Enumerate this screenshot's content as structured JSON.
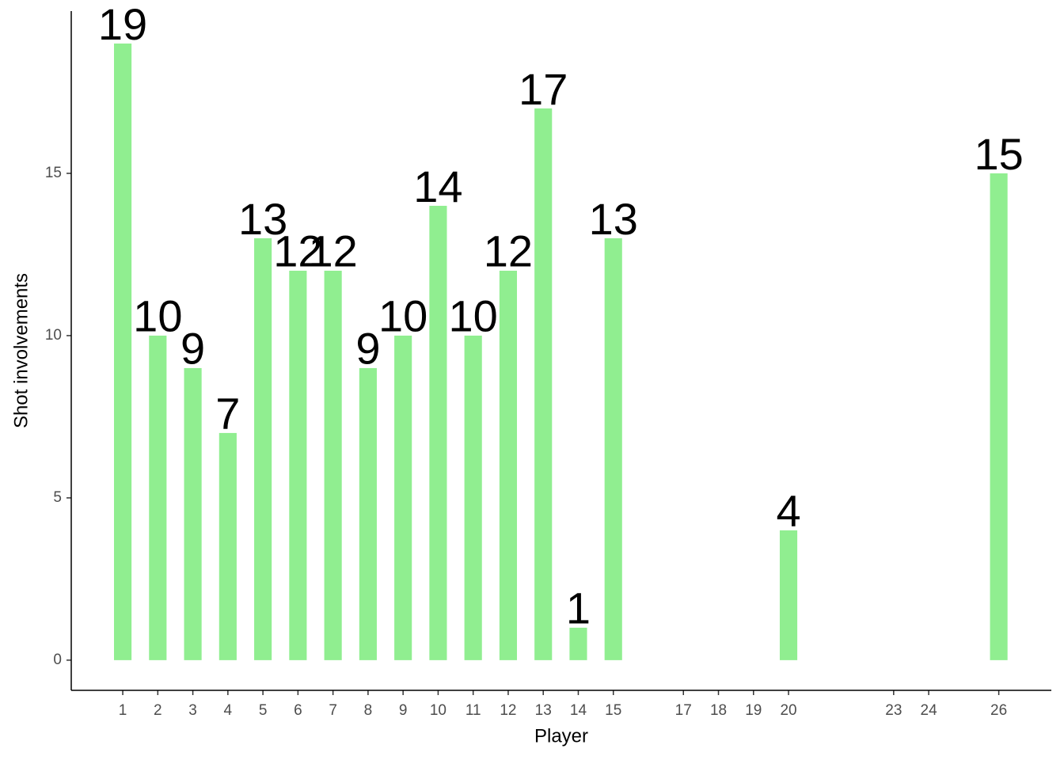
{
  "chart_data": {
    "type": "bar",
    "x": [
      1,
      2,
      3,
      4,
      5,
      6,
      7,
      8,
      9,
      10,
      11,
      12,
      13,
      14,
      15,
      20,
      26
    ],
    "values": [
      19,
      10,
      9,
      7,
      13,
      12,
      12,
      9,
      10,
      14,
      10,
      12,
      17,
      1,
      13,
      4,
      15
    ],
    "color": "#90ee90",
    "xlabel": "Player",
    "ylabel": "Shot involvements",
    "xlim": [
      -0.47,
      27.5
    ],
    "ylim": [
      -0.93,
      20
    ],
    "xticks": [
      1,
      2,
      3,
      4,
      5,
      6,
      7,
      8,
      9,
      10,
      11,
      12,
      13,
      14,
      15,
      17,
      18,
      19,
      20,
      23,
      24,
      26
    ],
    "yticks": [
      0,
      5,
      10,
      15
    ],
    "grid": false
  }
}
